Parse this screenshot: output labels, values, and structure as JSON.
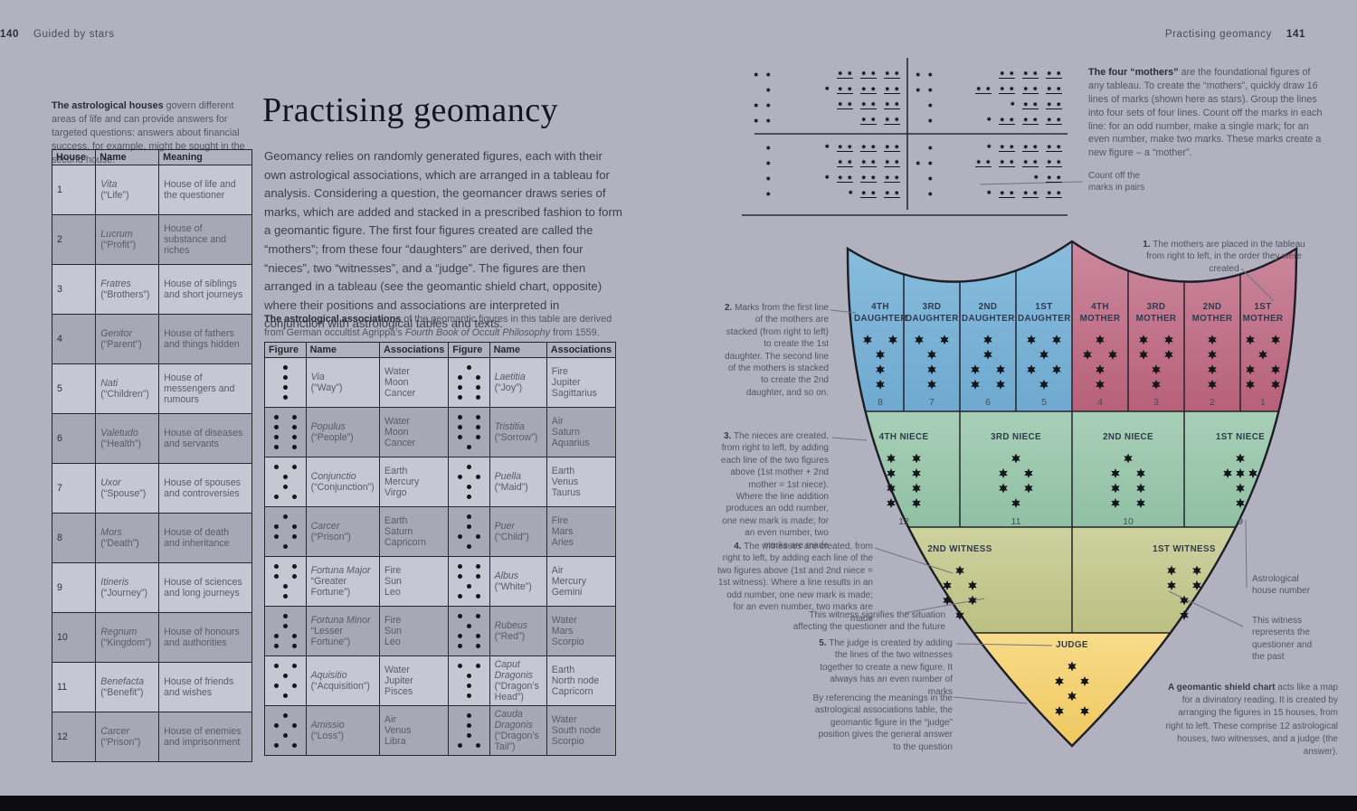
{
  "page_left": {
    "page_number": "140",
    "section_title": "Guided by stars",
    "sidebar_note_bold": "The astrological houses",
    "sidebar_note_rest": " govern different areas of life and can provide answers for targeted questions: answers about financial success, for example, might be sought in the second house.",
    "title": "Practising geomancy",
    "intro": "Geomancy relies on randomly generated figures, each with their own astrological associations, which are arranged in a tableau for analysis. Considering a question, the geomancer draws series of marks, which are added and stacked in a prescribed fashion to form a geomantic figure. The first four figures created are called the “mothers”; from these four “daughters” are derived, then four “nieces”, two “witnesses”, and a “judge”. The figures are then arranged in a tableau (see the geomantic shield chart, opposite) where their positions and associations are interpreted in conjunction with astrological tables and texts.",
    "assoc_note_bold": "The astrological associations",
    "assoc_note_rest": " of the geomantic figures in this table are derived from German occultist Agrippa’s ",
    "assoc_note_italic": "Fourth Book of Occult Philosophy",
    "assoc_note_end": " from 1559.",
    "houses_table": {
      "headers": [
        "House",
        "Name",
        "Meaning"
      ],
      "rows": [
        {
          "house": "1",
          "name": "Vita",
          "gloss": "(“Life”)",
          "meaning": "House of life and the questioner"
        },
        {
          "house": "2",
          "name": "Lucrum",
          "gloss": "(“Profit”)",
          "meaning": "House of substance and riches"
        },
        {
          "house": "3",
          "name": "Fratres",
          "gloss": "(“Brothers”)",
          "meaning": "House of siblings and short journeys"
        },
        {
          "house": "4",
          "name": "Genitor",
          "gloss": "(“Parent”)",
          "meaning": "House of fathers and things hidden"
        },
        {
          "house": "5",
          "name": "Nati",
          "gloss": "(“Children”)",
          "meaning": "House of messengers and rumours"
        },
        {
          "house": "6",
          "name": "Valetudo",
          "gloss": "(“Health”)",
          "meaning": "House of diseases and servants"
        },
        {
          "house": "7",
          "name": "Uxor",
          "gloss": "(“Spouse”)",
          "meaning": "House of spouses and controversies"
        },
        {
          "house": "8",
          "name": "Mors",
          "gloss": "(“Death”)",
          "meaning": "House of death and inheritance"
        },
        {
          "house": "9",
          "name": "Itineris",
          "gloss": "(“Journey”)",
          "meaning": "House of sciences and long journeys"
        },
        {
          "house": "10",
          "name": "Regnum",
          "gloss": "(“Kingdom”)",
          "meaning": "House of honours and authorities"
        },
        {
          "house": "11",
          "name": "Benefacta",
          "gloss": "(“Benefit”)",
          "meaning": "House of friends and wishes"
        },
        {
          "house": "12",
          "name": "Carcer",
          "gloss": "(“Prison”)",
          "meaning": "House of enemies and imprisonment"
        }
      ]
    },
    "assoc_table": {
      "headers": [
        "Figure",
        "Name",
        "Associations",
        "Figure",
        "Name",
        "Associations"
      ],
      "rows": [
        {
          "left": {
            "pattern": [
              "c",
              "c",
              "c",
              "c"
            ],
            "name": "Via",
            "gloss": "(“Way”)",
            "assoc": "Water\nMoon\nCancer"
          },
          "right": {
            "pattern": [
              "c",
              "lr",
              "lr",
              "lr"
            ],
            "name": "Laetitia",
            "gloss": "(“Joy”)",
            "assoc": "Fire\nJupiter\nSagittarius"
          }
        },
        {
          "left": {
            "pattern": [
              "lr",
              "lr",
              "lr",
              "lr"
            ],
            "name": "Populus",
            "gloss": "(“People”)",
            "assoc": "Water\nMoon\nCancer"
          },
          "right": {
            "pattern": [
              "lr",
              "lr",
              "lr",
              "c"
            ],
            "name": "Tristitia",
            "gloss": "(“Sorrow”)",
            "assoc": "Air\nSaturn\nAquarius"
          }
        },
        {
          "left": {
            "pattern": [
              "lr",
              "c",
              "c",
              "lr"
            ],
            "name": "Conjunctio",
            "gloss": "(“Conjunction”)",
            "assoc": "Earth\nMercury\nVirgo"
          },
          "right": {
            "pattern": [
              "c",
              "lr",
              "c",
              "c"
            ],
            "name": "Puella",
            "gloss": "(“Maid”)",
            "assoc": "Earth\nVenus\nTaurus"
          }
        },
        {
          "left": {
            "pattern": [
              "c",
              "lr",
              "lr",
              "c"
            ],
            "name": "Carcer",
            "gloss": "(“Prison”)",
            "assoc": "Earth\nSaturn\nCapricorn"
          },
          "right": {
            "pattern": [
              "c",
              "c",
              "lr",
              "c"
            ],
            "name": "Puer",
            "gloss": "(“Child”)",
            "assoc": "Fire\nMars\nAries"
          }
        },
        {
          "left": {
            "pattern": [
              "lr",
              "lr",
              "c",
              "c"
            ],
            "name": "Fortuna Major",
            "gloss": "“Greater Fortune”)",
            "assoc": "Fire\nSun\nLeo"
          },
          "right": {
            "pattern": [
              "lr",
              "lr",
              "c",
              "lr"
            ],
            "name": "Albus",
            "gloss": "(“White”)",
            "assoc": "Air\nMercury\nGemini"
          }
        },
        {
          "left": {
            "pattern": [
              "c",
              "c",
              "lr",
              "lr"
            ],
            "name": "Fortuna Minor",
            "gloss": "“Lesser Fortune”)",
            "assoc": "Fire\nSun\nLeo"
          },
          "right": {
            "pattern": [
              "lr",
              "c",
              "lr",
              "lr"
            ],
            "name": "Rubeus",
            "gloss": "(“Red”)",
            "assoc": "Water\nMars\nScorpio"
          }
        },
        {
          "left": {
            "pattern": [
              "lr",
              "c",
              "lr",
              "c"
            ],
            "name": "Aquisitio",
            "gloss": "(“Acquisition”)",
            "assoc": "Water\nJupiter\nPisces"
          },
          "right": {
            "pattern": [
              "lr",
              "c",
              "c",
              "c"
            ],
            "name": "Caput Dragonis",
            "gloss": "(“Dragon’s Head”)",
            "assoc": "Earth\nNorth node\nCapricorn"
          }
        },
        {
          "left": {
            "pattern": [
              "c",
              "lr",
              "c",
              "lr"
            ],
            "name": "Amissio",
            "gloss": "(“Loss”)",
            "assoc": "Air\nVenus\nLibra"
          },
          "right": {
            "pattern": [
              "c",
              "c",
              "c",
              "lr"
            ],
            "name": "Cauda Dragonis",
            "gloss": "(“Dragon’s Tail”)",
            "assoc": "Water\nSouth node\nScorpio"
          }
        }
      ]
    }
  },
  "page_right": {
    "section_title": "Practising geomancy",
    "page_number": "141",
    "tableau": {
      "note_bold": "The four “mothers”",
      "note_rest": " are the foundational figures of any tableau. To create the “mothers”, quickly draw 16 lines of marks (shown here as stars). Group the lines into four sets of four lines. Count off the marks in each line: for an odd number, make a single mark; for an even number, make two marks. These marks create a new figure – a “mother”.",
      "count_label": "Count off the\nmarks in pairs",
      "quadrants": [
        {
          "rows": [
            {
              "result": 2,
              "extra": false,
              "pairs": 3
            },
            {
              "result": 1,
              "extra": true,
              "pairs": 3
            },
            {
              "result": 2,
              "extra": false,
              "pairs": 3
            },
            {
              "result": 2,
              "extra": false,
              "pairs": 2
            }
          ]
        },
        {
          "rows": [
            {
              "result": 2,
              "extra": false,
              "pairs": 3
            },
            {
              "result": 2,
              "extra": false,
              "pairs": 4
            },
            {
              "result": 1,
              "extra": true,
              "pairs": 2
            },
            {
              "result": 1,
              "extra": true,
              "pairs": 3
            }
          ]
        },
        {
          "rows": [
            {
              "result": 1,
              "extra": true,
              "pairs": 3
            },
            {
              "result": 1,
              "extra": false,
              "pairs": 3
            },
            {
              "result": 1,
              "extra": true,
              "pairs": 3
            },
            {
              "result": 1,
              "extra": true,
              "pairs": 2
            }
          ]
        },
        {
          "rows": [
            {
              "result": 1,
              "extra": true,
              "pairs": 3
            },
            {
              "result": 2,
              "extra": false,
              "pairs": 4
            },
            {
              "result": 1,
              "extra": true,
              "pairs": 1
            },
            {
              "result": 1,
              "extra": true,
              "pairs": 3
            }
          ]
        }
      ]
    },
    "shield": {
      "colors": {
        "daughters": "#79b3d6",
        "mothers": "#c4788e",
        "nieces": "#9cc7ae",
        "witnesses": "#c6c996",
        "judge": "#f2cf72"
      },
      "cells": [
        {
          "label": "4TH\nDAUGHTER",
          "pattern": [
            "lr",
            "c",
            "c",
            "c"
          ],
          "number": "8"
        },
        {
          "label": "3RD\nDAUGHTER",
          "pattern": [
            "lr",
            "c",
            "c",
            "c"
          ],
          "number": "7"
        },
        {
          "label": "2ND\nDAUGHTER",
          "pattern": [
            "c",
            "c",
            "lr",
            "lr"
          ],
          "number": "6"
        },
        {
          "label": "1ST\nDAUGHTER",
          "pattern": [
            "lr",
            "c",
            "lr",
            "c"
          ],
          "number": "5"
        },
        {
          "label": "4TH\nMOTHER",
          "pattern": [
            "c",
            "lr",
            "c",
            "c"
          ],
          "number": "4"
        },
        {
          "label": "3RD\nMOTHER",
          "pattern": [
            "lr",
            "lr",
            "c",
            "c"
          ],
          "number": "3"
        },
        {
          "label": "2ND\nMOTHER",
          "pattern": [
            "c",
            "c",
            "c",
            "c"
          ],
          "number": "2"
        },
        {
          "label": "1ST\nMOTHER",
          "pattern": [
            "lr",
            "c",
            "lr",
            "lr"
          ],
          "number": "1"
        },
        {
          "label": "4TH NIECE",
          "pattern": [
            "lr",
            "lr",
            "lr",
            "lr"
          ],
          "number": "12"
        },
        {
          "label": "3RD NIECE",
          "pattern": [
            "c",
            "lr",
            "lr",
            "c"
          ],
          "number": "11"
        },
        {
          "label": "2ND NIECE",
          "pattern": [
            "c",
            "lr",
            "lr",
            "lr"
          ],
          "number": "10"
        },
        {
          "label": "1ST NIECE",
          "pattern": [
            "c",
            "lcr",
            "c",
            "c"
          ],
          "number": "9"
        },
        {
          "label": "2ND WITNESS",
          "pattern": [
            "c",
            "lr",
            "lr",
            "c"
          ],
          "number": ""
        },
        {
          "label": "1ST WITNESS",
          "pattern": [
            "lr",
            "lr",
            "c",
            "c"
          ],
          "number": ""
        },
        {
          "label": "JUDGE",
          "pattern": [
            "c",
            "lr",
            "c",
            "lr"
          ],
          "number": ""
        }
      ]
    },
    "annotations": {
      "a1": {
        "num": "1.",
        "text": "The mothers are placed in the tableau from right to left, in the order they were created"
      },
      "a2": {
        "num": "2.",
        "text": "Marks from the first line of the mothers are stacked (from right to left) to create the 1st daughter. The second line of the mothers is stacked to create the 2nd daughter, and so on."
      },
      "a3": {
        "num": "3.",
        "text": "The nieces are created, from right to left, by adding each line of the two figures above (1st mother + 2nd mother = 1st niece). Where the line addition produces an odd number, one new mark is made; for an even number, two marks are made"
      },
      "a4": {
        "num": "4.",
        "text": "The witnesses are created, from right to left, by adding each line of the two figures above (1st and 2nd niece = 1st witness). Where a line results in an odd number, one new mark is made; for an even number, two marks are made"
      },
      "a5": {
        "num": "5.",
        "text": "The judge is created by adding the lines of the two witnesses together to create a new figure. It always has an even number of marks"
      },
      "witness_left": "This witness signifies the situation affecting the questioner and the future",
      "witness_right": "This witness\nrepresents the\nquestioner and\nthe past",
      "house_number": "Astrological\nhouse number",
      "by_referencing": "By referencing the meanings in the astrological associations table, the geomantic figure in the “judge” position gives the general answer to the question",
      "caption_bold": "A geomantic shield chart",
      "caption_rest": " acts like a map for a divinatory reading. It is created by arranging the figures in 15 houses, from right to left. These comprise 12 astrological houses, two witnesses, and a judge (the answer)."
    }
  }
}
